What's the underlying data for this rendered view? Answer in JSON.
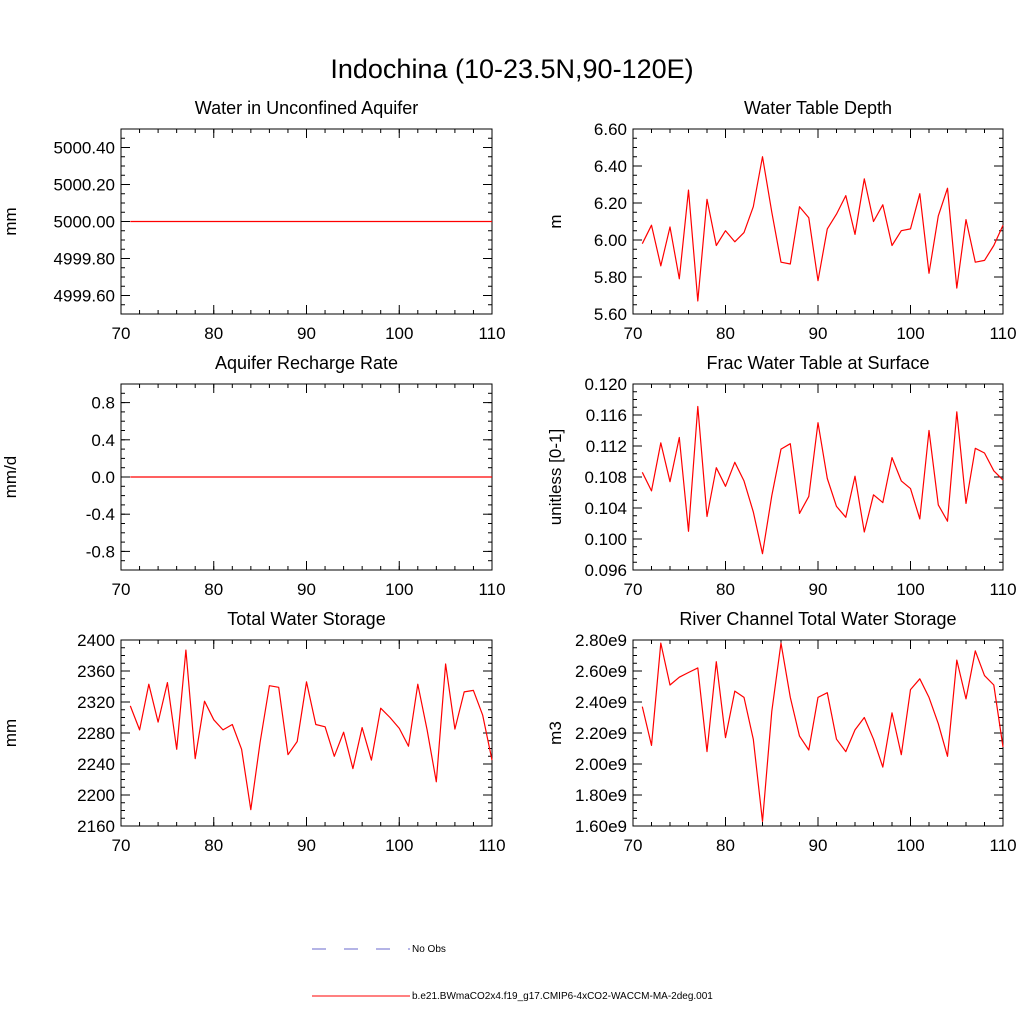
{
  "figure": {
    "title": "Indochina (10-23.5N,90-120E)",
    "legend": [
      {
        "label": "No Obs",
        "color": "#6a6acd",
        "style": "dashed"
      },
      {
        "label": "b.e21.BWmaCO2x4.f19_g17.CMIP6-4xCO2-WACCM-MA-2deg.001",
        "color": "#ff0000",
        "style": "solid"
      }
    ]
  },
  "chart_data": [
    {
      "type": "line",
      "title": "Water in Unconfined Aquifer",
      "xlabel": "",
      "ylabel": "mm",
      "xlim": [
        70,
        110
      ],
      "ylim": [
        4999.5,
        5000.5
      ],
      "x_ticks": [
        70,
        80,
        90,
        100,
        110
      ],
      "x_tick_labels": [
        "70",
        "80",
        "90",
        "100",
        "110"
      ],
      "y_ticks": [
        4999.6,
        4999.8,
        5000.0,
        5000.2,
        5000.4
      ],
      "y_tick_labels": [
        "4999.60",
        "4999.80",
        "5000.00",
        "5000.20",
        "5000.40"
      ],
      "x": [
        71,
        110
      ],
      "series": [
        {
          "name": "b.e21.BWmaCO2x4.f19_g17.CMIP6-4xCO2-WACCM-MA-2deg.001",
          "color": "#ff0000",
          "values": [
            5000.0,
            5000.0
          ]
        }
      ]
    },
    {
      "type": "line",
      "title": "Water Table Depth",
      "xlabel": "",
      "ylabel": "m",
      "xlim": [
        70,
        110
      ],
      "ylim": [
        5.6,
        6.6
      ],
      "x_ticks": [
        70,
        80,
        90,
        100,
        110
      ],
      "x_tick_labels": [
        "70",
        "80",
        "90",
        "100",
        "110"
      ],
      "y_ticks": [
        5.6,
        5.8,
        6.0,
        6.2,
        6.4,
        6.6
      ],
      "y_tick_labels": [
        "5.60",
        "5.80",
        "6.00",
        "6.20",
        "6.40",
        "6.60"
      ],
      "x": [
        71,
        72,
        73,
        74,
        75,
        76,
        77,
        78,
        79,
        80,
        81,
        82,
        83,
        84,
        85,
        86,
        87,
        88,
        89,
        90,
        91,
        92,
        93,
        94,
        95,
        96,
        97,
        98,
        99,
        100,
        101,
        102,
        103,
        104,
        105,
        106,
        107,
        108,
        109,
        110
      ],
      "series": [
        {
          "name": "b.e21.BWmaCO2x4.f19_g17.CMIP6-4xCO2-WACCM-MA-2deg.001",
          "color": "#ff0000",
          "values": [
            5.98,
            6.08,
            5.86,
            6.07,
            5.79,
            6.27,
            5.67,
            6.22,
            5.97,
            6.05,
            5.99,
            6.04,
            6.18,
            6.45,
            6.15,
            5.88,
            5.87,
            6.18,
            6.12,
            5.78,
            6.06,
            6.14,
            6.24,
            6.03,
            6.33,
            6.1,
            6.19,
            5.97,
            6.05,
            6.06,
            6.25,
            5.82,
            6.13,
            6.28,
            5.74,
            6.11,
            5.88,
            5.89,
            5.97,
            6.08
          ]
        }
      ]
    },
    {
      "type": "line",
      "title": "Aquifer Recharge Rate",
      "xlabel": "",
      "ylabel": "mm/d",
      "xlim": [
        70,
        110
      ],
      "ylim": [
        -1.0,
        1.0
      ],
      "x_ticks": [
        70,
        80,
        90,
        100,
        110
      ],
      "x_tick_labels": [
        "70",
        "80",
        "90",
        "100",
        "110"
      ],
      "y_ticks": [
        -0.8,
        -0.4,
        0.0,
        0.4,
        0.8
      ],
      "y_tick_labels": [
        "-0.8",
        "-0.4",
        "0.0",
        "0.4",
        "0.8"
      ],
      "x": [
        71,
        110
      ],
      "series": [
        {
          "name": "b.e21.BWmaCO2x4.f19_g17.CMIP6-4xCO2-WACCM-MA-2deg.001",
          "color": "#ff0000",
          "values": [
            0.0,
            0.0
          ]
        }
      ]
    },
    {
      "type": "line",
      "title": "Frac Water Table at Surface",
      "xlabel": "",
      "ylabel": "unitless [0-1]",
      "xlim": [
        70,
        110
      ],
      "ylim": [
        0.096,
        0.12
      ],
      "x_ticks": [
        70,
        80,
        90,
        100,
        110
      ],
      "x_tick_labels": [
        "70",
        "80",
        "90",
        "100",
        "110"
      ],
      "y_ticks": [
        0.096,
        0.1,
        0.104,
        0.108,
        0.112,
        0.116,
        0.12
      ],
      "y_tick_labels": [
        "0.096",
        "0.100",
        "0.104",
        "0.108",
        "0.112",
        "0.116",
        "0.120"
      ],
      "x": [
        71,
        72,
        73,
        74,
        75,
        76,
        77,
        78,
        79,
        80,
        81,
        82,
        83,
        84,
        85,
        86,
        87,
        88,
        89,
        90,
        91,
        92,
        93,
        94,
        95,
        96,
        97,
        98,
        99,
        100,
        101,
        102,
        103,
        104,
        105,
        106,
        107,
        108,
        109,
        110
      ],
      "series": [
        {
          "name": "b.e21.BWmaCO2x4.f19_g17.CMIP6-4xCO2-WACCM-MA-2deg.001",
          "color": "#ff0000",
          "values": [
            0.1086,
            0.1062,
            0.1124,
            0.1074,
            0.1131,
            0.101,
            0.1171,
            0.1029,
            0.1092,
            0.1068,
            0.1099,
            0.1075,
            0.1035,
            0.0981,
            0.1056,
            0.1116,
            0.1123,
            0.1033,
            0.1055,
            0.115,
            0.1078,
            0.1042,
            0.1028,
            0.1081,
            0.1009,
            0.1057,
            0.1047,
            0.1105,
            0.1075,
            0.1065,
            0.1026,
            0.114,
            0.1044,
            0.1023,
            0.1164,
            0.1046,
            0.1117,
            0.1111,
            0.1088,
            0.1076
          ]
        }
      ]
    },
    {
      "type": "line",
      "title": "Total Water Storage",
      "xlabel": "",
      "ylabel": "mm",
      "xlim": [
        70,
        110
      ],
      "ylim": [
        2160,
        2400
      ],
      "x_ticks": [
        70,
        80,
        90,
        100,
        110
      ],
      "x_tick_labels": [
        "70",
        "80",
        "90",
        "100",
        "110"
      ],
      "y_ticks": [
        2160,
        2200,
        2240,
        2280,
        2320,
        2360,
        2400
      ],
      "y_tick_labels": [
        "2160",
        "2200",
        "2240",
        "2280",
        "2320",
        "2360",
        "2400"
      ],
      "x": [
        71,
        72,
        73,
        74,
        75,
        76,
        77,
        78,
        79,
        80,
        81,
        82,
        83,
        84,
        85,
        86,
        87,
        88,
        89,
        90,
        91,
        92,
        93,
        94,
        95,
        96,
        97,
        98,
        99,
        100,
        101,
        102,
        103,
        104,
        105,
        106,
        107,
        108,
        109,
        110
      ],
      "series": [
        {
          "name": "b.e21.BWmaCO2x4.f19_g17.CMIP6-4xCO2-WACCM-MA-2deg.001",
          "color": "#ff0000",
          "values": [
            2315,
            2284,
            2343,
            2294,
            2345,
            2259,
            2387,
            2247,
            2321,
            2297,
            2284,
            2291,
            2259,
            2181,
            2268,
            2341,
            2339,
            2252,
            2269,
            2346,
            2291,
            2288,
            2250,
            2281,
            2234,
            2287,
            2245,
            2312,
            2300,
            2286,
            2263,
            2343,
            2284,
            2217,
            2369,
            2285,
            2333,
            2335,
            2303,
            2245
          ]
        }
      ]
    },
    {
      "type": "line",
      "title": "River Channel Total Water Storage",
      "xlabel": "",
      "ylabel": "m3",
      "xlim": [
        70,
        110
      ],
      "ylim": [
        1600000000.0,
        2800000000.0
      ],
      "x_ticks": [
        70,
        80,
        90,
        100,
        110
      ],
      "x_tick_labels": [
        "70",
        "80",
        "90",
        "100",
        "110"
      ],
      "y_ticks": [
        1600000000.0,
        1800000000.0,
        2000000000.0,
        2200000000.0,
        2400000000.0,
        2600000000.0,
        2800000000.0
      ],
      "y_tick_labels": [
        "1.60e9",
        "1.80e9",
        "2.00e9",
        "2.20e9",
        "2.40e9",
        "2.60e9",
        "2.80e9"
      ],
      "x": [
        71,
        72,
        73,
        74,
        75,
        76,
        77,
        78,
        79,
        80,
        81,
        82,
        83,
        84,
        85,
        86,
        87,
        88,
        89,
        90,
        91,
        92,
        93,
        94,
        95,
        96,
        97,
        98,
        99,
        100,
        101,
        102,
        103,
        104,
        105,
        106,
        107,
        108,
        109,
        110
      ],
      "series": [
        {
          "name": "b.e21.BWmaCO2x4.f19_g17.CMIP6-4xCO2-WACCM-MA-2deg.001",
          "color": "#ff0000",
          "values": [
            2370000000.0,
            2120000000.0,
            2780000000.0,
            2510000000.0,
            2560000000.0,
            2590000000.0,
            2620000000.0,
            2080000000.0,
            2660000000.0,
            2170000000.0,
            2470000000.0,
            2430000000.0,
            2160000000.0,
            1630000000.0,
            2340000000.0,
            2780000000.0,
            2430000000.0,
            2180000000.0,
            2090000000.0,
            2430000000.0,
            2460000000.0,
            2160000000.0,
            2080000000.0,
            2220000000.0,
            2300000000.0,
            2160000000.0,
            1980000000.0,
            2330000000.0,
            2060000000.0,
            2480000000.0,
            2550000000.0,
            2430000000.0,
            2260000000.0,
            2050000000.0,
            2670000000.0,
            2420000000.0,
            2730000000.0,
            2570000000.0,
            2510000000.0,
            2110000000.0
          ]
        }
      ]
    }
  ]
}
